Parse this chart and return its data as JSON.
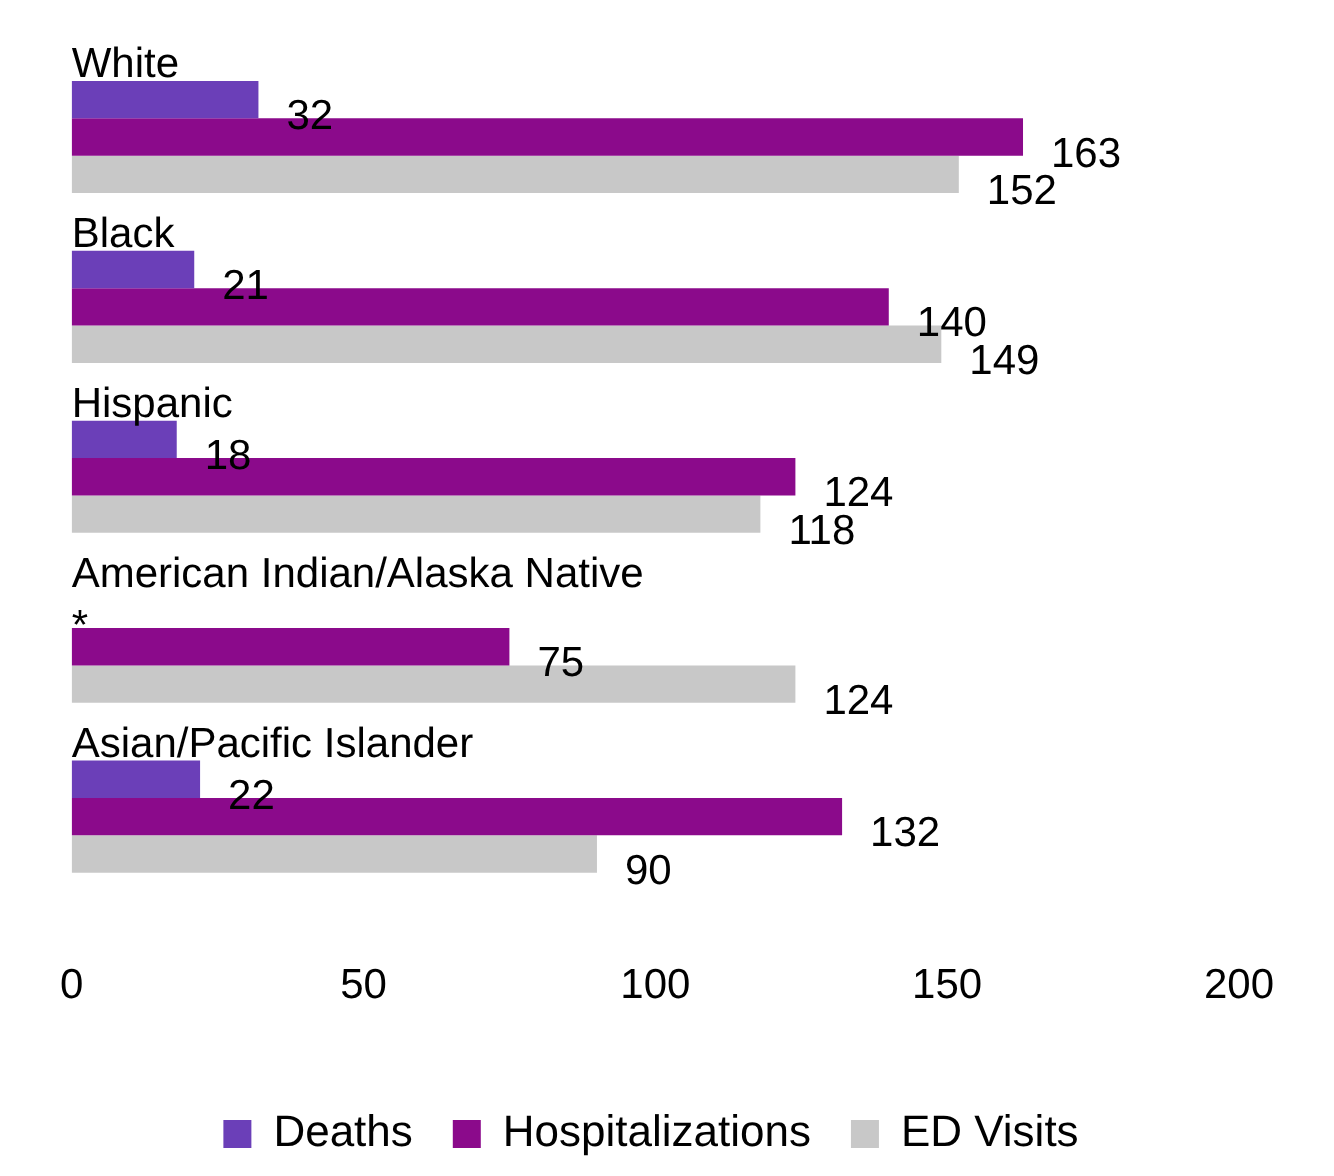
{
  "chart_data": {
    "type": "bar",
    "orientation": "horizontal",
    "categories": [
      "White",
      "Black",
      "Hispanic",
      "American Indian/Alaska Native",
      "Asian/Pacific Islander"
    ],
    "series": [
      {
        "name": "Deaths",
        "color": "#6b3fb8",
        "values": [
          32,
          21,
          18,
          null,
          22
        ],
        "value_labels": [
          "32",
          "21",
          "18",
          "*",
          "22"
        ]
      },
      {
        "name": "Hospitalizations",
        "color": "#8b0a8b",
        "values": [
          163,
          140,
          124,
          75,
          132
        ],
        "value_labels": [
          "163",
          "140",
          "124",
          "75",
          "132"
        ]
      },
      {
        "name": "ED Visits",
        "color": "#c8c8c8",
        "values": [
          152,
          149,
          118,
          124,
          90
        ],
        "value_labels": [
          "152",
          "149",
          "118",
          "124",
          "90"
        ]
      }
    ],
    "xlim": [
      0,
      200
    ],
    "xticks": [
      0,
      50,
      100,
      150,
      200
    ],
    "grid": false,
    "legend": "bottom"
  }
}
